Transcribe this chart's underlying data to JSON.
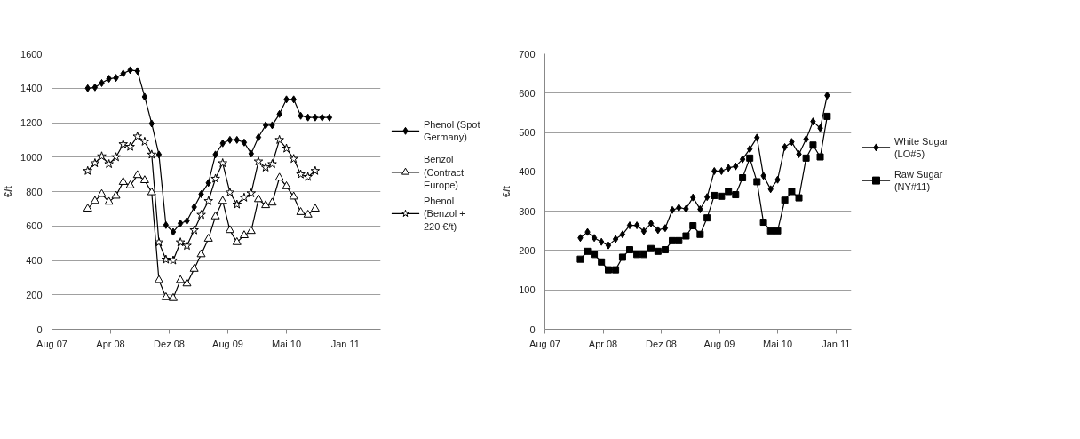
{
  "chart_data": [
    {
      "type": "line",
      "ylabel": "€/t",
      "legend": "right",
      "grid": "y",
      "line_style": "solid",
      "xlim": [
        "2007-08-01",
        "2011-06-08"
      ],
      "xticks": [
        {
          "value": "2007-08-01",
          "label": "Aug 07"
        },
        {
          "value": "2008-04-08",
          "label": "Apr 08"
        },
        {
          "value": "2008-12-15",
          "label": "Dez 08"
        },
        {
          "value": "2009-08-23",
          "label": "Aug 09"
        },
        {
          "value": "2010-05-01",
          "label": "Mai 10"
        },
        {
          "value": "2011-01-08",
          "label": "Jan 11"
        }
      ],
      "ylim": [
        0,
        1600
      ],
      "yticks": [
        0,
        200,
        400,
        600,
        800,
        1000,
        1200,
        1400,
        1600
      ],
      "series": [
        {
          "name": "Phenol (Spot Germany)",
          "color": "#000000",
          "marker": "diamond",
          "x": [
            "2008-01",
            "2008-02",
            "2008-03",
            "2008-04",
            "2008-05",
            "2008-06",
            "2008-07",
            "2008-08",
            "2008-09",
            "2008-10",
            "2008-11",
            "2008-12",
            "2009-01",
            "2009-02",
            "2009-03",
            "2009-04",
            "2009-05",
            "2009-06",
            "2009-07",
            "2009-08",
            "2009-09",
            "2009-10",
            "2009-11",
            "2009-12",
            "2010-01",
            "2010-02",
            "2010-03",
            "2010-04",
            "2010-05",
            "2010-06",
            "2010-07",
            "2010-08",
            "2010-09",
            "2010-10",
            "2010-11"
          ],
          "values": [
            1400,
            1405,
            1430,
            1455,
            1460,
            1485,
            1505,
            1500,
            1350,
            1195,
            1015,
            605,
            565,
            615,
            630,
            710,
            785,
            850,
            1015,
            1080,
            1100,
            1100,
            1085,
            1020,
            1115,
            1185,
            1185,
            1250,
            1335,
            1335,
            1240,
            1230,
            1230,
            1230,
            1230
          ]
        },
        {
          "name": "Benzol (Contract Europe)",
          "color": "#000000",
          "marker": "triangle",
          "x": [
            "2008-01",
            "2008-02",
            "2008-03",
            "2008-04",
            "2008-05",
            "2008-06",
            "2008-07",
            "2008-08",
            "2008-09",
            "2008-10",
            "2008-11",
            "2008-12",
            "2009-01",
            "2009-02",
            "2009-03",
            "2009-04",
            "2009-05",
            "2009-06",
            "2009-07",
            "2009-08",
            "2009-09",
            "2009-10",
            "2009-11",
            "2009-12",
            "2010-01",
            "2010-02",
            "2010-03",
            "2010-04",
            "2010-05",
            "2010-06",
            "2010-07",
            "2010-08",
            "2010-09"
          ],
          "values": [
            700,
            745,
            785,
            740,
            775,
            855,
            835,
            895,
            865,
            795,
            285,
            185,
            180,
            285,
            265,
            350,
            435,
            525,
            655,
            745,
            575,
            505,
            545,
            570,
            755,
            720,
            735,
            880,
            830,
            770,
            680,
            665,
            700
          ]
        },
        {
          "name": "Phenol (Benzol + 220 €/t)",
          "color": "#000000",
          "marker": "star",
          "x": [
            "2008-01",
            "2008-02",
            "2008-03",
            "2008-04",
            "2008-05",
            "2008-06",
            "2008-07",
            "2008-08",
            "2008-09",
            "2008-10",
            "2008-11",
            "2008-12",
            "2009-01",
            "2009-02",
            "2009-03",
            "2009-04",
            "2009-05",
            "2009-06",
            "2009-07",
            "2009-08",
            "2009-09",
            "2009-10",
            "2009-11",
            "2009-12",
            "2010-01",
            "2010-02",
            "2010-03",
            "2010-04",
            "2010-05",
            "2010-06",
            "2010-07",
            "2010-08",
            "2010-09"
          ],
          "values": [
            920,
            965,
            1005,
            960,
            1000,
            1075,
            1060,
            1120,
            1090,
            1015,
            505,
            405,
            400,
            505,
            485,
            575,
            665,
            745,
            875,
            965,
            795,
            725,
            765,
            790,
            975,
            940,
            960,
            1100,
            1050,
            990,
            900,
            885,
            920
          ]
        }
      ]
    },
    {
      "type": "line",
      "ylabel": "€/t",
      "legend": "right",
      "grid": "y",
      "line_style": "solid",
      "xlim": [
        "2007-08-01",
        "2011-03-15"
      ],
      "xticks": [
        {
          "value": "2007-08-01",
          "label": "Aug 07"
        },
        {
          "value": "2008-04-08",
          "label": "Apr 08"
        },
        {
          "value": "2008-12-15",
          "label": "Dez 08"
        },
        {
          "value": "2009-08-23",
          "label": "Aug 09"
        },
        {
          "value": "2010-05-01",
          "label": "Mai 10"
        },
        {
          "value": "2011-01-08",
          "label": "Jan 11"
        }
      ],
      "ylim": [
        0,
        700
      ],
      "yticks": [
        0,
        100,
        200,
        300,
        400,
        500,
        600,
        700
      ],
      "series": [
        {
          "name": "White Sugar (LO#5)",
          "color": "#000000",
          "marker": "diamond",
          "x": [
            "2008-01",
            "2008-02",
            "2008-03",
            "2008-04",
            "2008-05",
            "2008-06",
            "2008-07",
            "2008-08",
            "2008-09",
            "2008-10",
            "2008-11",
            "2008-12",
            "2009-01",
            "2009-02",
            "2009-03",
            "2009-04",
            "2009-05",
            "2009-06",
            "2009-07",
            "2009-08",
            "2009-09",
            "2009-10",
            "2009-11",
            "2009-12",
            "2010-01",
            "2010-02",
            "2010-03",
            "2010-04",
            "2010-05",
            "2010-06",
            "2010-07",
            "2010-08",
            "2010-09",
            "2010-10",
            "2010-11",
            "2010-12"
          ],
          "values": [
            232,
            247,
            232,
            222,
            213,
            229,
            241,
            264,
            264,
            249,
            269,
            252,
            257,
            303,
            309,
            306,
            335,
            305,
            336,
            402,
            402,
            410,
            414,
            432,
            458,
            487,
            390,
            356,
            380,
            463,
            476,
            445,
            483,
            528,
            511,
            594
          ]
        },
        {
          "name": "Raw Sugar (NY#11)",
          "color": "#000000",
          "marker": "square",
          "x": [
            "2008-01",
            "2008-02",
            "2008-03",
            "2008-04",
            "2008-05",
            "2008-06",
            "2008-07",
            "2008-08",
            "2008-09",
            "2008-10",
            "2008-11",
            "2008-12",
            "2009-01",
            "2009-02",
            "2009-03",
            "2009-04",
            "2009-05",
            "2009-06",
            "2009-07",
            "2009-08",
            "2009-09",
            "2009-10",
            "2009-11",
            "2009-12",
            "2010-01",
            "2010-02",
            "2010-03",
            "2010-04",
            "2010-05",
            "2010-06",
            "2010-07",
            "2010-08",
            "2010-09",
            "2010-10",
            "2010-11",
            "2010-12"
          ],
          "values": [
            178,
            198,
            190,
            171,
            151,
            151,
            183,
            202,
            190,
            190,
            205,
            198,
            202,
            225,
            225,
            237,
            263,
            241,
            283,
            340,
            338,
            350,
            342,
            385,
            435,
            375,
            272,
            250,
            250,
            328,
            350,
            334,
            435,
            468,
            438,
            541
          ]
        }
      ]
    }
  ]
}
